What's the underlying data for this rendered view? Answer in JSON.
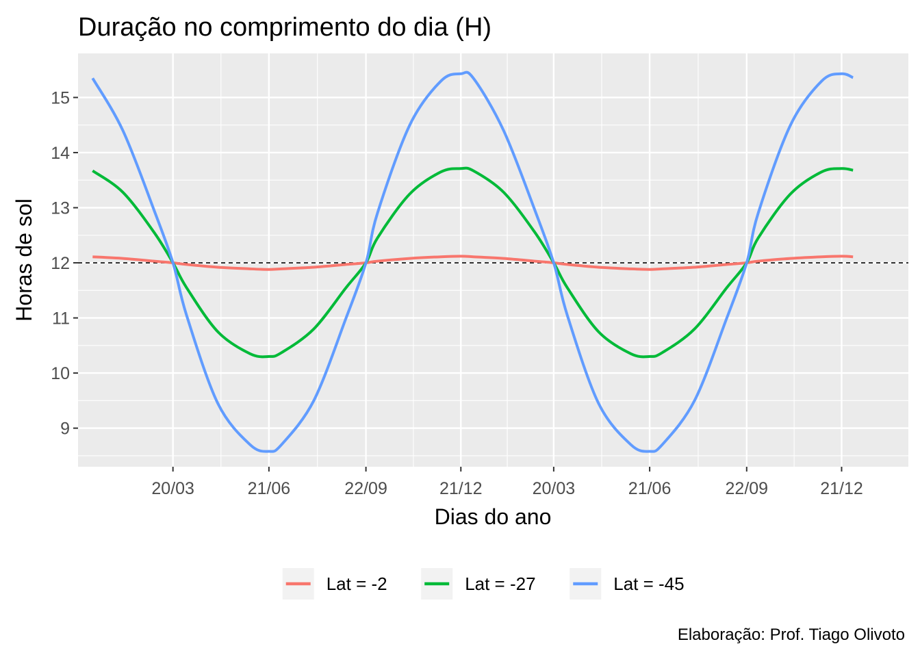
{
  "chart_data": {
    "type": "line",
    "title": "Duração no comprimento do dia (H)",
    "xlabel": "Dias do ano",
    "ylabel": "Horas de sol",
    "caption": "Elaboração: Prof. Tiago Olivoto",
    "x_unit": "day",
    "xlim": [
      -13,
      783
    ],
    "ylim": [
      8.3,
      15.8
    ],
    "x_ticks": [
      {
        "day": 78,
        "label": "20/03"
      },
      {
        "day": 170,
        "label": "21/06"
      },
      {
        "day": 263,
        "label": "22/09"
      },
      {
        "day": 354,
        "label": "21/12"
      },
      {
        "day": 443,
        "label": "20/03"
      },
      {
        "day": 535,
        "label": "21/06"
      },
      {
        "day": 628,
        "label": "22/09"
      },
      {
        "day": 719,
        "label": "21/12"
      }
    ],
    "y_ticks": [
      9,
      10,
      11,
      12,
      13,
      14,
      15
    ],
    "reference_line": {
      "y": 12,
      "style": "dashed",
      "color": "#000000"
    },
    "grid": true,
    "legend_position": "bottom",
    "series": [
      {
        "name": "Lat = -2",
        "color": "#F8766D",
        "x": [
          1,
          30,
          60,
          78,
          91,
          121,
          152,
          170,
          182,
          213,
          244,
          263,
          274,
          305,
          335,
          354,
          366,
          395,
          425,
          443,
          456,
          486,
          517,
          535,
          547,
          578,
          609,
          628,
          639,
          670,
          700,
          719,
          730
        ],
        "values": [
          12.11,
          12.08,
          12.03,
          12.0,
          11.97,
          11.92,
          11.89,
          11.88,
          11.89,
          11.92,
          11.97,
          12.0,
          12.03,
          12.08,
          12.11,
          12.12,
          12.11,
          12.08,
          12.03,
          12.0,
          11.97,
          11.92,
          11.89,
          11.88,
          11.89,
          11.92,
          11.97,
          12.0,
          12.03,
          12.08,
          12.11,
          12.12,
          12.11
        ]
      },
      {
        "name": "Lat = -27",
        "color": "#00BA38",
        "x": [
          1,
          30,
          60,
          78,
          91,
          121,
          152,
          170,
          182,
          213,
          244,
          263,
          274,
          305,
          335,
          354,
          366,
          395,
          425,
          443,
          456,
          486,
          517,
          535,
          547,
          578,
          609,
          628,
          639,
          670,
          700,
          719,
          730
        ],
        "values": [
          13.67,
          13.28,
          12.55,
          12.0,
          11.55,
          10.75,
          10.35,
          10.3,
          10.37,
          10.8,
          11.55,
          12.0,
          12.45,
          13.25,
          13.65,
          13.71,
          13.67,
          13.28,
          12.55,
          12.0,
          11.55,
          10.75,
          10.35,
          10.3,
          10.37,
          10.8,
          11.55,
          12.0,
          12.45,
          13.25,
          13.65,
          13.71,
          13.68
        ]
      },
      {
        "name": "Lat = -45",
        "color": "#619CFF",
        "x": [
          1,
          30,
          60,
          78,
          91,
          121,
          152,
          170,
          182,
          213,
          244,
          263,
          274,
          305,
          335,
          354,
          366,
          395,
          425,
          443,
          456,
          486,
          517,
          535,
          547,
          578,
          609,
          628,
          639,
          670,
          700,
          719,
          730
        ],
        "values": [
          15.35,
          14.4,
          12.95,
          12.0,
          11.05,
          9.45,
          8.7,
          8.58,
          8.7,
          9.5,
          11.0,
          12.0,
          12.9,
          14.5,
          15.3,
          15.43,
          15.35,
          14.4,
          12.95,
          12.0,
          11.05,
          9.45,
          8.7,
          8.58,
          8.7,
          9.5,
          11.0,
          12.0,
          12.9,
          14.5,
          15.3,
          15.43,
          15.36
        ]
      }
    ]
  }
}
